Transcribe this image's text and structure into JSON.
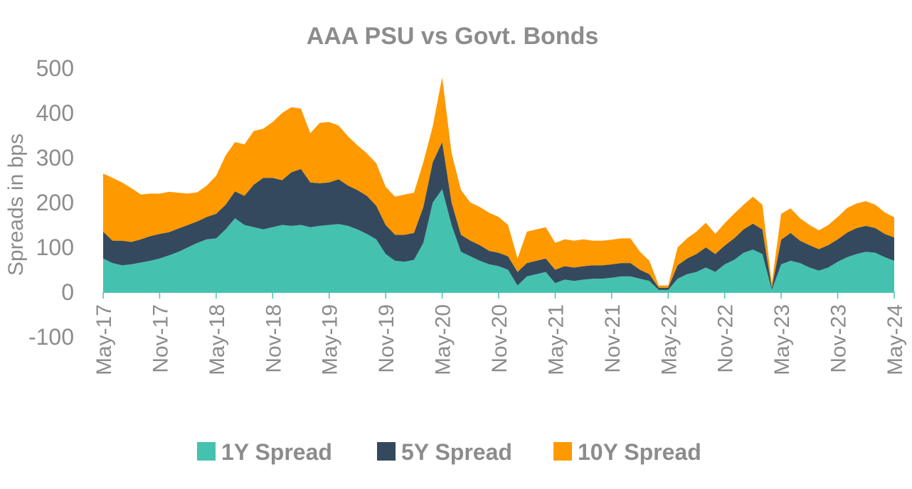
{
  "chart_data": {
    "type": "area",
    "stacking": "stacked",
    "title": "AAA PSU vs Govt. Bonds",
    "ylabel": "Spreads in bps",
    "xlabel": "",
    "ylim": [
      -100,
      500
    ],
    "yticks": [
      500,
      400,
      300,
      200,
      100,
      0,
      -100
    ],
    "xticks": [
      "May-17",
      "Nov-17",
      "May-18",
      "Nov-18",
      "May-19",
      "Nov-19",
      "May-20",
      "Nov-20",
      "May-21",
      "Nov-21",
      "May-22",
      "Nov-22",
      "May-23",
      "Nov-23",
      "May-24"
    ],
    "grid": false,
    "legend_position": "bottom",
    "x": [
      "May-17",
      "Jun-17",
      "Jul-17",
      "Aug-17",
      "Sep-17",
      "Oct-17",
      "Nov-17",
      "Dec-17",
      "Jan-18",
      "Feb-18",
      "Mar-18",
      "Apr-18",
      "May-18",
      "Jun-18",
      "Jul-18",
      "Aug-18",
      "Sep-18",
      "Oct-18",
      "Nov-18",
      "Dec-18",
      "Jan-19",
      "Feb-19",
      "Mar-19",
      "Apr-19",
      "May-19",
      "Jun-19",
      "Jul-19",
      "Aug-19",
      "Sep-19",
      "Oct-19",
      "Nov-19",
      "Dec-19",
      "Jan-20",
      "Feb-20",
      "Mar-20",
      "Apr-20",
      "May-20",
      "Jun-20",
      "Jul-20",
      "Aug-20",
      "Sep-20",
      "Oct-20",
      "Nov-20",
      "Dec-20",
      "Jan-21",
      "Feb-21",
      "Mar-21",
      "Apr-21",
      "May-21",
      "Jun-21",
      "Jul-21",
      "Aug-21",
      "Sep-21",
      "Oct-21",
      "Nov-21",
      "Dec-21",
      "Jan-22",
      "Feb-22",
      "Mar-22",
      "Apr-22",
      "May-22",
      "Jun-22",
      "Jul-22",
      "Aug-22",
      "Sep-22",
      "Oct-22",
      "Nov-22",
      "Dec-22",
      "Jan-23",
      "Feb-23",
      "Mar-23",
      "Apr-23",
      "May-23",
      "Jun-23",
      "Jul-23",
      "Aug-23",
      "Sep-23",
      "Oct-23",
      "Nov-23",
      "Dec-23",
      "Jan-24",
      "Feb-24",
      "Mar-24",
      "Apr-24",
      "May-24"
    ],
    "series": [
      {
        "name": "1Y Spread",
        "color": "#45c1b0",
        "values": [
          75,
          65,
          60,
          62,
          66,
          70,
          75,
          82,
          90,
          100,
          110,
          118,
          120,
          140,
          165,
          150,
          145,
          140,
          145,
          150,
          148,
          150,
          145,
          148,
          150,
          152,
          148,
          140,
          130,
          118,
          85,
          70,
          68,
          72,
          110,
          200,
          230,
          150,
          90,
          80,
          70,
          62,
          58,
          50,
          15,
          35,
          40,
          45,
          20,
          28,
          25,
          28,
          30,
          30,
          32,
          35,
          35,
          30,
          25,
          5,
          5,
          30,
          40,
          45,
          55,
          45,
          62,
          72,
          88,
          95,
          85,
          5,
          62,
          70,
          65,
          55,
          48,
          55,
          68,
          78,
          85,
          90,
          88,
          78,
          70
        ]
      },
      {
        "name": "5Y Spread",
        "color": "#34495e",
        "values": [
          60,
          50,
          55,
          50,
          52,
          55,
          55,
          52,
          52,
          50,
          48,
          50,
          55,
          55,
          60,
          65,
          95,
          115,
          110,
          100,
          120,
          125,
          100,
          95,
          95,
          100,
          90,
          88,
          85,
          75,
          65,
          58,
          60,
          60,
          80,
          90,
          105,
          50,
          38,
          35,
          35,
          30,
          30,
          30,
          30,
          30,
          30,
          30,
          30,
          30,
          30,
          30,
          30,
          30,
          30,
          30,
          30,
          20,
          15,
          5,
          5,
          30,
          35,
          40,
          45,
          40,
          42,
          48,
          52,
          58,
          55,
          5,
          55,
          62,
          50,
          50,
          48,
          50,
          50,
          55,
          58,
          58,
          55,
          52,
          52
        ]
      },
      {
        "name": "10Y Spread",
        "color": "#ff9900",
        "values": [
          130,
          140,
          130,
          120,
          100,
          95,
          90,
          90,
          80,
          70,
          65,
          70,
          85,
          110,
          110,
          115,
          120,
          110,
          125,
          150,
          145,
          135,
          110,
          135,
          135,
          120,
          110,
          100,
          95,
          95,
          85,
          85,
          90,
          90,
          100,
          80,
          145,
          110,
          100,
          85,
          85,
          85,
          80,
          70,
          30,
          70,
          70,
          70,
          60,
          60,
          60,
          60,
          55,
          55,
          55,
          55,
          55,
          40,
          30,
          5,
          5,
          40,
          45,
          50,
          55,
          45,
          50,
          55,
          55,
          60,
          55,
          10,
          58,
          55,
          50,
          45,
          42,
          45,
          50,
          55,
          55,
          55,
          52,
          48,
          45
        ]
      }
    ]
  }
}
